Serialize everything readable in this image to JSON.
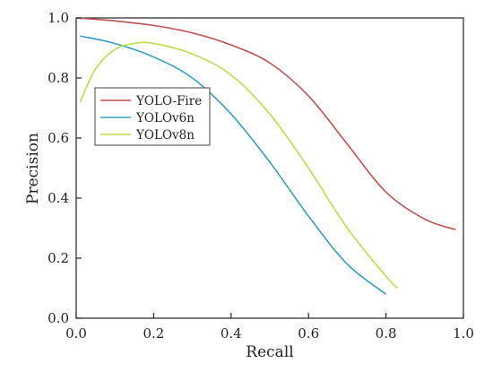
{
  "chart_data": {
    "type": "line",
    "xlabel": "Recall",
    "ylabel": "Precision",
    "xlim": [
      0.0,
      1.0
    ],
    "ylim": [
      0.0,
      1.0
    ],
    "xticks": [
      "0.0",
      "0.2",
      "0.4",
      "0.6",
      "0.8",
      "1.0"
    ],
    "yticks": [
      "0.0",
      "0.2",
      "0.4",
      "0.6",
      "0.8",
      "1.0"
    ],
    "grid": false,
    "legend_position": "upper-left",
    "series": [
      {
        "name": "YOLO-Fire",
        "color": "#c0504d",
        "x": [
          0.0,
          0.1,
          0.2,
          0.3,
          0.4,
          0.5,
          0.6,
          0.7,
          0.8,
          0.9,
          0.98
        ],
        "y": [
          1.0,
          0.99,
          0.975,
          0.95,
          0.91,
          0.85,
          0.74,
          0.58,
          0.42,
          0.33,
          0.295
        ]
      },
      {
        "name": "YOLOv6n",
        "color": "#2f9ec2",
        "x": [
          0.01,
          0.1,
          0.2,
          0.3,
          0.4,
          0.5,
          0.6,
          0.7,
          0.8
        ],
        "y": [
          0.94,
          0.915,
          0.87,
          0.8,
          0.68,
          0.52,
          0.34,
          0.18,
          0.08
        ]
      },
      {
        "name": "YOLOv8n",
        "color": "#c4d84b",
        "x": [
          0.01,
          0.05,
          0.1,
          0.15,
          0.2,
          0.3,
          0.4,
          0.5,
          0.6,
          0.7,
          0.8,
          0.83
        ],
        "y": [
          0.72,
          0.83,
          0.895,
          0.915,
          0.915,
          0.88,
          0.81,
          0.68,
          0.5,
          0.3,
          0.14,
          0.1
        ]
      }
    ]
  }
}
